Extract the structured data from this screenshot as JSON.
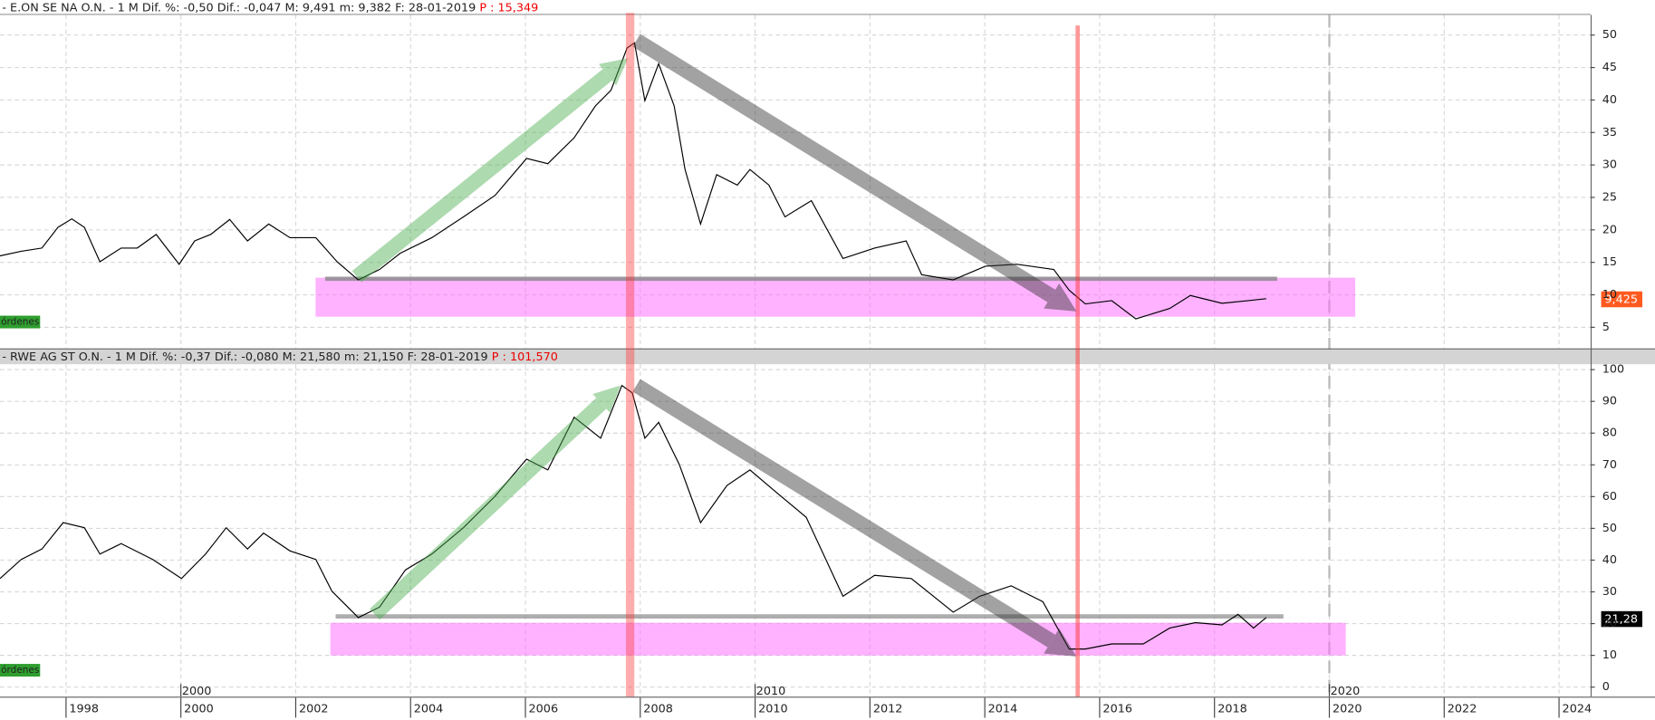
{
  "chart_data": [
    {
      "type": "line",
      "title": "- E.ON SE NA O.N. -  1 M Dif. %: -0,50 Dif.: -0,047 M: 9,491 m: 9,382 F: 28-01-2019",
      "subtitle": "P : 15,349",
      "last_label": "9,425",
      "button": "órdenes",
      "color": "#000000",
      "grid": true,
      "xlim": [
        1996.85,
        2024.55
      ],
      "ylim": [
        1.75,
        53.1
      ],
      "yticks": [
        5,
        10,
        15,
        20,
        25,
        30,
        35,
        40,
        45,
        50
      ],
      "x": [
        1996.85,
        1997.22,
        1997.58,
        1997.86,
        1998.1,
        1998.32,
        1998.59,
        1998.96,
        1999.24,
        1999.57,
        1999.97,
        2000.24,
        2000.52,
        2000.85,
        2001.16,
        2001.53,
        2001.9,
        2002.35,
        2002.72,
        2003.09,
        2003.46,
        2003.82,
        2004.37,
        2004.92,
        2005.47,
        2006.02,
        2006.39,
        2006.85,
        2007.22,
        2007.49,
        2007.77,
        2007.9,
        2008.08,
        2008.32,
        2008.59,
        2008.78,
        2009.05,
        2009.33,
        2009.69,
        2009.91,
        2010.24,
        2010.52,
        2010.98,
        2011.53,
        2012.08,
        2012.63,
        2012.9,
        2013.45,
        2014.01,
        2014.56,
        2015.2,
        2015.47,
        2015.75,
        2016.21,
        2016.63,
        2017.22,
        2017.58,
        2018.13,
        2018.59,
        2018.9
      ],
      "values": [
        16.0,
        16.7,
        17.2,
        20.4,
        21.7,
        20.4,
        15.1,
        17.2,
        17.2,
        19.3,
        14.7,
        18.3,
        19.3,
        21.6,
        18.3,
        20.9,
        18.8,
        18.8,
        15.1,
        12.3,
        13.9,
        16.4,
        18.8,
        22.0,
        25.3,
        31.0,
        30.2,
        34.2,
        39.1,
        41.5,
        48.0,
        48.8,
        39.9,
        45.6,
        39.1,
        29.3,
        20.9,
        28.5,
        26.9,
        29.3,
        26.9,
        22.0,
        24.5,
        15.6,
        17.2,
        18.3,
        13.1,
        12.3,
        14.4,
        14.7,
        13.9,
        10.7,
        8.6,
        9.1,
        6.3,
        7.9,
        9.9,
        8.7,
        9.1,
        9.4
      ]
    },
    {
      "type": "line",
      "title": "- RWE AG ST O.N. -  1 M Dif. %: -0,37 Dif.: -0,080 M: 21,580 m: 21,150 F: 28-01-2019",
      "subtitle": "P : 101,570",
      "last_label": "21,28",
      "button": "órdenes",
      "color": "#000000",
      "grid": true,
      "xlim": [
        1996.85,
        2024.55
      ],
      "xticks": [
        1998,
        2000,
        2002,
        2004,
        2006,
        2008,
        2010,
        2012,
        2014,
        2016,
        2018,
        2020,
        2022,
        2024
      ],
      "decade_ticks": [
        2000,
        2010,
        2020
      ],
      "ylim": [
        -3,
        101.7
      ],
      "yticks": [
        0,
        10,
        20,
        30,
        40,
        50,
        60,
        70,
        80,
        90,
        100
      ],
      "x": [
        1996.85,
        1997.22,
        1997.58,
        1997.95,
        1998.32,
        1998.59,
        1998.96,
        1999.51,
        2000.01,
        2000.43,
        2000.79,
        2001.16,
        2001.44,
        2001.9,
        2002.35,
        2002.63,
        2003.09,
        2003.46,
        2003.91,
        2004.37,
        2004.92,
        2005.47,
        2006.02,
        2006.39,
        2006.85,
        2007.31,
        2007.68,
        2007.86,
        2008.08,
        2008.32,
        2008.68,
        2009.05,
        2009.51,
        2009.91,
        2010.34,
        2010.89,
        2011.53,
        2012.08,
        2012.72,
        2013.45,
        2013.91,
        2014.46,
        2015.01,
        2015.47,
        2015.75,
        2016.21,
        2016.76,
        2017.22,
        2017.67,
        2018.13,
        2018.41,
        2018.68,
        2018.9
      ],
      "values": [
        34.2,
        40.2,
        43.5,
        51.8,
        50.2,
        41.9,
        45.2,
        40.2,
        34.2,
        41.9,
        50.2,
        43.5,
        48.5,
        42.9,
        40.2,
        30.2,
        21.9,
        25.2,
        36.9,
        41.9,
        50.2,
        60.1,
        71.8,
        68.4,
        85.0,
        78.4,
        95.0,
        92.7,
        78.4,
        83.4,
        70.1,
        51.8,
        63.5,
        68.4,
        61.8,
        53.5,
        28.6,
        35.2,
        34.2,
        23.6,
        28.6,
        31.9,
        26.9,
        12.0,
        12.0,
        13.6,
        13.6,
        18.6,
        20.3,
        19.6,
        22.9,
        18.6,
        21.9
      ]
    }
  ]
}
